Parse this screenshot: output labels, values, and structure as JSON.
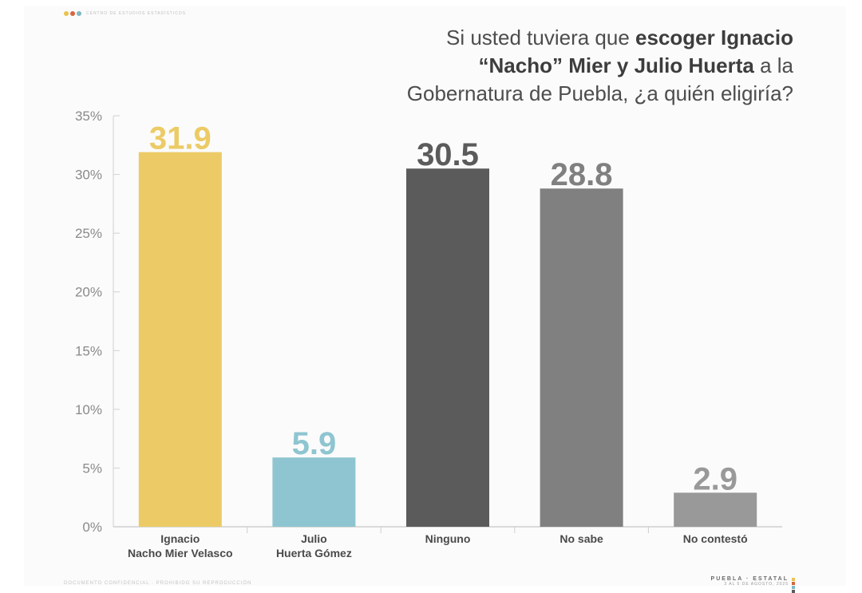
{
  "header": {
    "logo": {
      "colors": [
        "#e9c34f",
        "#d8643f",
        "#7fb7c2"
      ],
      "text": "CENTRO DE ESTUDIOS ESTADÍSTICOS"
    }
  },
  "chart_data": {
    "type": "bar",
    "title_parts": [
      {
        "text": "Si usted tuviera que ",
        "bold": false
      },
      {
        "text": "escoger Ignacio",
        "bold": true
      },
      {
        "text": "“Nacho” Mier y Julio Huerta",
        "bold": true,
        "break_before": true
      },
      {
        "text": " a la",
        "bold": false
      },
      {
        "text": "Gobernatura de Puebla, ¿a quién eligiría?",
        "bold": false,
        "break_before": true
      }
    ],
    "categories": [
      "Ignacio\nNacho Mier Velasco",
      "Julio\nHuerta Gómez",
      "Ninguno",
      "No sabe",
      "No contestó"
    ],
    "values": [
      31.9,
      5.9,
      30.5,
      28.8,
      2.9
    ],
    "value_labels": [
      "31.9",
      "5.9",
      "30.5",
      "28.8",
      "2.9"
    ],
    "colors": [
      "#eccb66",
      "#8ec5d0",
      "#5b5b5b",
      "#808080",
      "#999999"
    ],
    "y_ticks": [
      "0%",
      "5%",
      "10%",
      "15%",
      "20%",
      "25%",
      "30%",
      "35%"
    ],
    "ylim": [
      0,
      35
    ],
    "grid": false,
    "legend": "none"
  },
  "footer": {
    "left": "DOCUMENTO CONFIDENCIAL · PROHIBIDO SU REPRODUCCIÓN",
    "right_title": "PUEBLA · ESTATAL",
    "right_dates": "3 AL 5 DE AGOSTO, 2025",
    "mark_colors": [
      "#e9c34f",
      "#d8643f",
      "#7fb7c2",
      "#5b5b5b"
    ]
  }
}
